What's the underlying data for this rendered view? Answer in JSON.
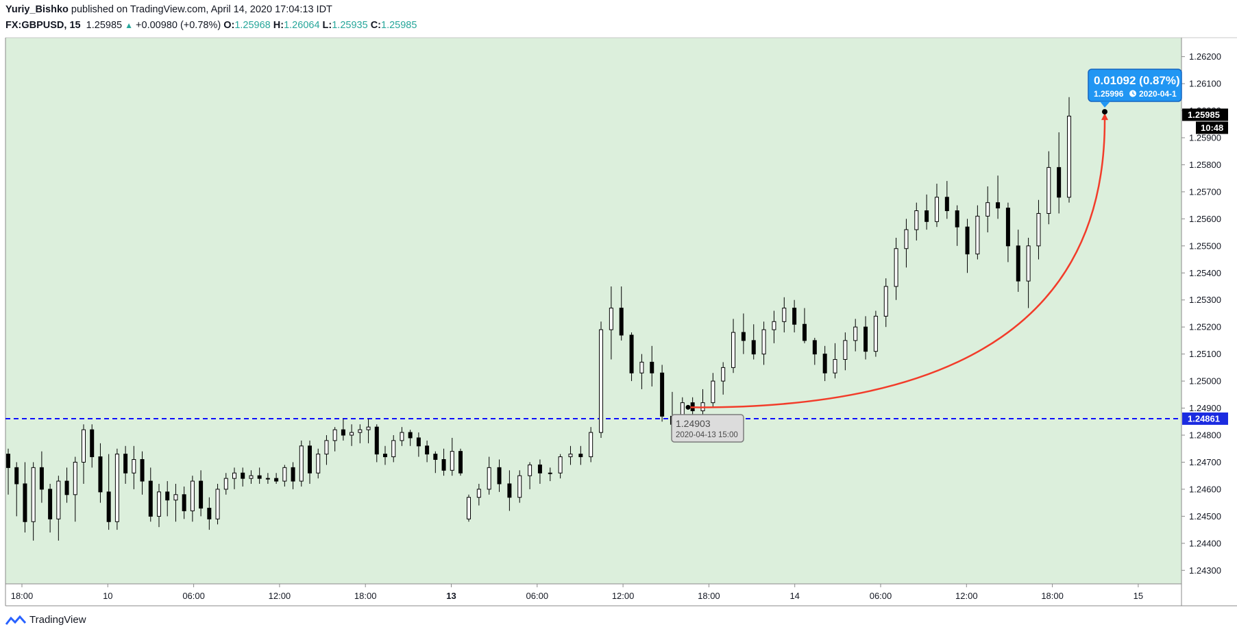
{
  "header": {
    "author": "Yuriy_Bishko",
    "published_text": "published on TradingView.com, April 14, 2020 17:04:13 IDT",
    "symbol": "FX:GBPUSD, 15",
    "last": "1.25985",
    "change": "+0.00980 (+0.78%)",
    "open_label": "O:",
    "open": "1.25968",
    "high_label": "H:",
    "high": "1.26064",
    "low_label": "L:",
    "low": "1.25935",
    "close_label": "C:",
    "close": "1.25985"
  },
  "brand": {
    "name": "TradingView"
  },
  "colors": {
    "plot_bg": "#dcefdc",
    "candle_up": "#ffffff",
    "candle_down": "#000000",
    "candle_wick": "#000000",
    "hline": "#0000ff",
    "curve": "#f23c2a",
    "price_tag_bg": "#000000",
    "hline_tag_bg": "#1b2be0",
    "callout_bg": "#2196f3",
    "callout_border": "#1565c0"
  },
  "chart_data": {
    "type": "candlestick",
    "symbol": "FX:GBPUSD",
    "interval": "15",
    "ylim": [
      1.2425,
      1.2627
    ],
    "y_ticks": [
      "1.26200",
      "1.26100",
      "1.26000",
      "1.25900",
      "1.25800",
      "1.25700",
      "1.25600",
      "1.25500",
      "1.25400",
      "1.25300",
      "1.25200",
      "1.25100",
      "1.25000",
      "1.24900",
      "1.24800",
      "1.24700",
      "1.24600",
      "1.24500",
      "1.24400",
      "1.24300"
    ],
    "x_ticks": [
      "18:00",
      "10",
      "06:00",
      "12:00",
      "18:00",
      "13",
      "06:00",
      "12:00",
      "18:00",
      "14",
      "06:00",
      "12:00",
      "18:00",
      "15"
    ],
    "x_ticks_bold": [
      "13"
    ],
    "horizontal_line": {
      "price": 1.24861,
      "label": "1.24861",
      "style": "dashed"
    },
    "current_price": {
      "price": 1.25985,
      "label": "1.25985",
      "countdown": "10:48"
    },
    "start_annotation": {
      "price_label": "1.24903",
      "date_label": "2020-04-13 15:00"
    },
    "measure_callout": {
      "change_label": "0.01092 (0.87%)",
      "price_label": "1.25996",
      "date_label": "2020-04-1"
    },
    "curve": {
      "from_price": 1.24903,
      "to_price": 1.25996
    },
    "candles": [
      [
        1.2473,
        1.2475,
        1.2458,
        1.2468
      ],
      [
        1.2468,
        1.247,
        1.245,
        1.2462
      ],
      [
        1.2462,
        1.247,
        1.2444,
        1.2448
      ],
      [
        1.2448,
        1.247,
        1.2441,
        1.2468
      ],
      [
        1.2468,
        1.2474,
        1.2455,
        1.246
      ],
      [
        1.246,
        1.2462,
        1.2444,
        1.2449
      ],
      [
        1.2449,
        1.2465,
        1.2441,
        1.2463
      ],
      [
        1.2463,
        1.2468,
        1.2455,
        1.2458
      ],
      [
        1.2458,
        1.2472,
        1.2448,
        1.247
      ],
      [
        1.247,
        1.2484,
        1.2462,
        1.2482
      ],
      [
        1.2482,
        1.2484,
        1.2468,
        1.2472
      ],
      [
        1.2472,
        1.2477,
        1.2455,
        1.2459
      ],
      [
        1.2459,
        1.2473,
        1.2445,
        1.2448
      ],
      [
        1.2448,
        1.2475,
        1.2445,
        1.2473
      ],
      [
        1.2473,
        1.2476,
        1.2462,
        1.2466
      ],
      [
        1.2466,
        1.2476,
        1.246,
        1.2471
      ],
      [
        1.2471,
        1.2474,
        1.2458,
        1.2463
      ],
      [
        1.2463,
        1.2468,
        1.2448,
        1.245
      ],
      [
        1.245,
        1.2462,
        1.2446,
        1.2459
      ],
      [
        1.2459,
        1.2463,
        1.245,
        1.2456
      ],
      [
        1.2456,
        1.2462,
        1.2448,
        1.2458
      ],
      [
        1.2458,
        1.2461,
        1.2449,
        1.2452
      ],
      [
        1.2452,
        1.2465,
        1.2448,
        1.2463
      ],
      [
        1.2463,
        1.2467,
        1.245,
        1.2453
      ],
      [
        1.2453,
        1.2457,
        1.2445,
        1.2449
      ],
      [
        1.2449,
        1.2462,
        1.2447,
        1.246
      ],
      [
        1.246,
        1.2466,
        1.2458,
        1.2464
      ],
      [
        1.2464,
        1.2468,
        1.246,
        1.2466
      ],
      [
        1.2466,
        1.2468,
        1.2461,
        1.2464
      ],
      [
        1.2464,
        1.2467,
        1.2462,
        1.2465
      ],
      [
        1.2465,
        1.2468,
        1.2462,
        1.2464
      ],
      [
        1.2464,
        1.2466,
        1.2462,
        1.2464
      ],
      [
        1.2464,
        1.2466,
        1.2462,
        1.2463
      ],
      [
        1.2463,
        1.2469,
        1.2461,
        1.2468
      ],
      [
        1.2468,
        1.247,
        1.246,
        1.2463
      ],
      [
        1.2463,
        1.2478,
        1.2461,
        1.2476
      ],
      [
        1.2476,
        1.2478,
        1.2462,
        1.2466
      ],
      [
        1.2466,
        1.2475,
        1.2464,
        1.2473
      ],
      [
        1.2473,
        1.248,
        1.2469,
        1.2478
      ],
      [
        1.2478,
        1.2483,
        1.2474,
        1.2482
      ],
      [
        1.2482,
        1.2486,
        1.2478,
        1.248
      ],
      [
        1.248,
        1.2484,
        1.2476,
        1.2481
      ],
      [
        1.2481,
        1.2484,
        1.2477,
        1.2482
      ],
      [
        1.2482,
        1.2486,
        1.2477,
        1.2483
      ],
      [
        1.2483,
        1.2484,
        1.247,
        1.2473
      ],
      [
        1.2473,
        1.2476,
        1.2469,
        1.2472
      ],
      [
        1.2472,
        1.248,
        1.247,
        1.2478
      ],
      [
        1.2478,
        1.2483,
        1.2476,
        1.2481
      ],
      [
        1.2481,
        1.2482,
        1.2476,
        1.2479
      ],
      [
        1.2479,
        1.2481,
        1.2472,
        1.2476
      ],
      [
        1.2476,
        1.2478,
        1.247,
        1.2473
      ],
      [
        1.2473,
        1.2474,
        1.2466,
        1.2471
      ],
      [
        1.2471,
        1.2475,
        1.2465,
        1.2467
      ],
      [
        1.2467,
        1.2479,
        1.2465,
        1.2474
      ],
      [
        1.2474,
        1.2475,
        1.2465,
        1.2466
      ],
      [
        1.2449,
        1.2458,
        1.2448,
        1.2457
      ],
      [
        1.2457,
        1.2462,
        1.2454,
        1.246
      ],
      [
        1.246,
        1.2472,
        1.2458,
        1.2468
      ],
      [
        1.2468,
        1.2471,
        1.2459,
        1.2462
      ],
      [
        1.2462,
        1.2467,
        1.2452,
        1.2457
      ],
      [
        1.2457,
        1.2467,
        1.2455,
        1.2465
      ],
      [
        1.2465,
        1.247,
        1.246,
        1.2469
      ],
      [
        1.2469,
        1.2471,
        1.2462,
        1.2466
      ],
      [
        1.2466,
        1.2468,
        1.2463,
        1.2466
      ],
      [
        1.2466,
        1.2473,
        1.2464,
        1.2472
      ],
      [
        1.2472,
        1.2476,
        1.2469,
        1.2473
      ],
      [
        1.2473,
        1.2476,
        1.2469,
        1.2472
      ],
      [
        1.2472,
        1.2483,
        1.247,
        1.2481
      ],
      [
        1.2481,
        1.2522,
        1.2479,
        1.2519
      ],
      [
        1.2519,
        1.2535,
        1.2508,
        1.2527
      ],
      [
        1.2527,
        1.2535,
        1.2515,
        1.2517
      ],
      [
        1.2517,
        1.2518,
        1.25,
        1.2503
      ],
      [
        1.2503,
        1.251,
        1.2497,
        1.2507
      ],
      [
        1.2507,
        1.2513,
        1.2498,
        1.2503
      ],
      [
        1.2503,
        1.2506,
        1.2485,
        1.2487
      ],
      [
        1.2487,
        1.2496,
        1.2478,
        1.2484
      ],
      [
        1.2484,
        1.2494,
        1.2482,
        1.2492
      ],
      [
        1.2492,
        1.2494,
        1.2487,
        1.2489
      ],
      [
        1.2489,
        1.2497,
        1.2486,
        1.2492
      ],
      [
        1.2492,
        1.2503,
        1.249,
        1.25
      ],
      [
        1.25,
        1.2507,
        1.2495,
        1.2505
      ],
      [
        1.2505,
        1.2523,
        1.2503,
        1.2518
      ],
      [
        1.2518,
        1.2525,
        1.251,
        1.2515
      ],
      [
        1.2515,
        1.2521,
        1.2508,
        1.251
      ],
      [
        1.251,
        1.2522,
        1.2506,
        1.2519
      ],
      [
        1.2519,
        1.2526,
        1.2514,
        1.2522
      ],
      [
        1.2522,
        1.2531,
        1.2518,
        1.2527
      ],
      [
        1.2527,
        1.253,
        1.2518,
        1.2521
      ],
      [
        1.2521,
        1.2527,
        1.2514,
        1.2515
      ],
      [
        1.2515,
        1.2516,
        1.2506,
        1.251
      ],
      [
        1.251,
        1.2513,
        1.25,
        1.2503
      ],
      [
        1.2503,
        1.2514,
        1.2501,
        1.2508
      ],
      [
        1.2508,
        1.2518,
        1.2504,
        1.2515
      ],
      [
        1.2515,
        1.2523,
        1.2511,
        1.252
      ],
      [
        1.252,
        1.2524,
        1.2508,
        1.2511
      ],
      [
        1.2511,
        1.2526,
        1.2509,
        1.2524
      ],
      [
        1.2524,
        1.2538,
        1.252,
        1.2535
      ],
      [
        1.2535,
        1.2553,
        1.253,
        1.2549
      ],
      [
        1.2549,
        1.256,
        1.2542,
        1.2556
      ],
      [
        1.2556,
        1.2566,
        1.2552,
        1.2563
      ],
      [
        1.2563,
        1.2569,
        1.2556,
        1.2559
      ],
      [
        1.2559,
        1.2573,
        1.2557,
        1.2568
      ],
      [
        1.2568,
        1.2574,
        1.256,
        1.2563
      ],
      [
        1.2563,
        1.2565,
        1.255,
        1.2557
      ],
      [
        1.2557,
        1.256,
        1.254,
        1.2547
      ],
      [
        1.2547,
        1.2565,
        1.2545,
        1.2561
      ],
      [
        1.2561,
        1.2572,
        1.2555,
        1.2566
      ],
      [
        1.2566,
        1.2576,
        1.256,
        1.2564
      ],
      [
        1.2564,
        1.2566,
        1.2544,
        1.255
      ],
      [
        1.255,
        1.2556,
        1.2533,
        1.2537
      ],
      [
        1.2537,
        1.2553,
        1.2527,
        1.255
      ],
      [
        1.255,
        1.2567,
        1.2545,
        1.2562
      ],
      [
        1.2562,
        1.2585,
        1.2558,
        1.2579
      ],
      [
        1.2579,
        1.2592,
        1.2562,
        1.2568
      ],
      [
        1.2568,
        1.2605,
        1.2566,
        1.2598
      ]
    ]
  }
}
